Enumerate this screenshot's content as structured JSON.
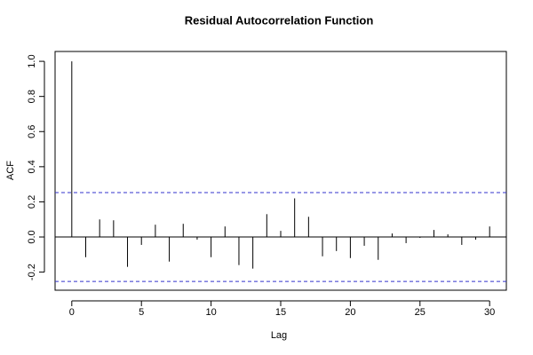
{
  "chart_data": {
    "type": "stem",
    "title": "Residual Autocorrelation Function",
    "xlabel": "Lag",
    "ylabel": "ACF",
    "x": [
      0,
      1,
      2,
      3,
      4,
      5,
      6,
      7,
      8,
      9,
      10,
      11,
      12,
      13,
      14,
      15,
      16,
      17,
      18,
      19,
      20,
      21,
      22,
      23,
      24,
      25,
      26,
      27,
      28,
      29,
      30
    ],
    "values": [
      1.0,
      -0.115,
      0.1,
      0.095,
      -0.17,
      -0.045,
      0.07,
      -0.14,
      0.075,
      -0.015,
      -0.115,
      0.06,
      -0.16,
      -0.18,
      0.13,
      0.035,
      0.22,
      0.115,
      -0.11,
      -0.08,
      -0.12,
      -0.05,
      -0.13,
      0.02,
      -0.035,
      -0.005,
      0.04,
      0.015,
      -0.045,
      -0.015,
      0.06
    ],
    "color": "#000000",
    "ci": [
      0.253,
      -0.253
    ],
    "ci_color": "#3333cc",
    "xlim": [
      -1.2,
      31.2
    ],
    "ylim": [
      -0.303,
      1.056
    ],
    "xticks": [
      0,
      5,
      10,
      15,
      20,
      25,
      30
    ],
    "yticks": [
      {
        "value": -0.2,
        "label": "-0.2"
      },
      {
        "value": 0,
        "label": "0.0"
      },
      0.2,
      0.4,
      0.6,
      0.8,
      {
        "value": 1,
        "label": "1.0"
      }
    ]
  }
}
